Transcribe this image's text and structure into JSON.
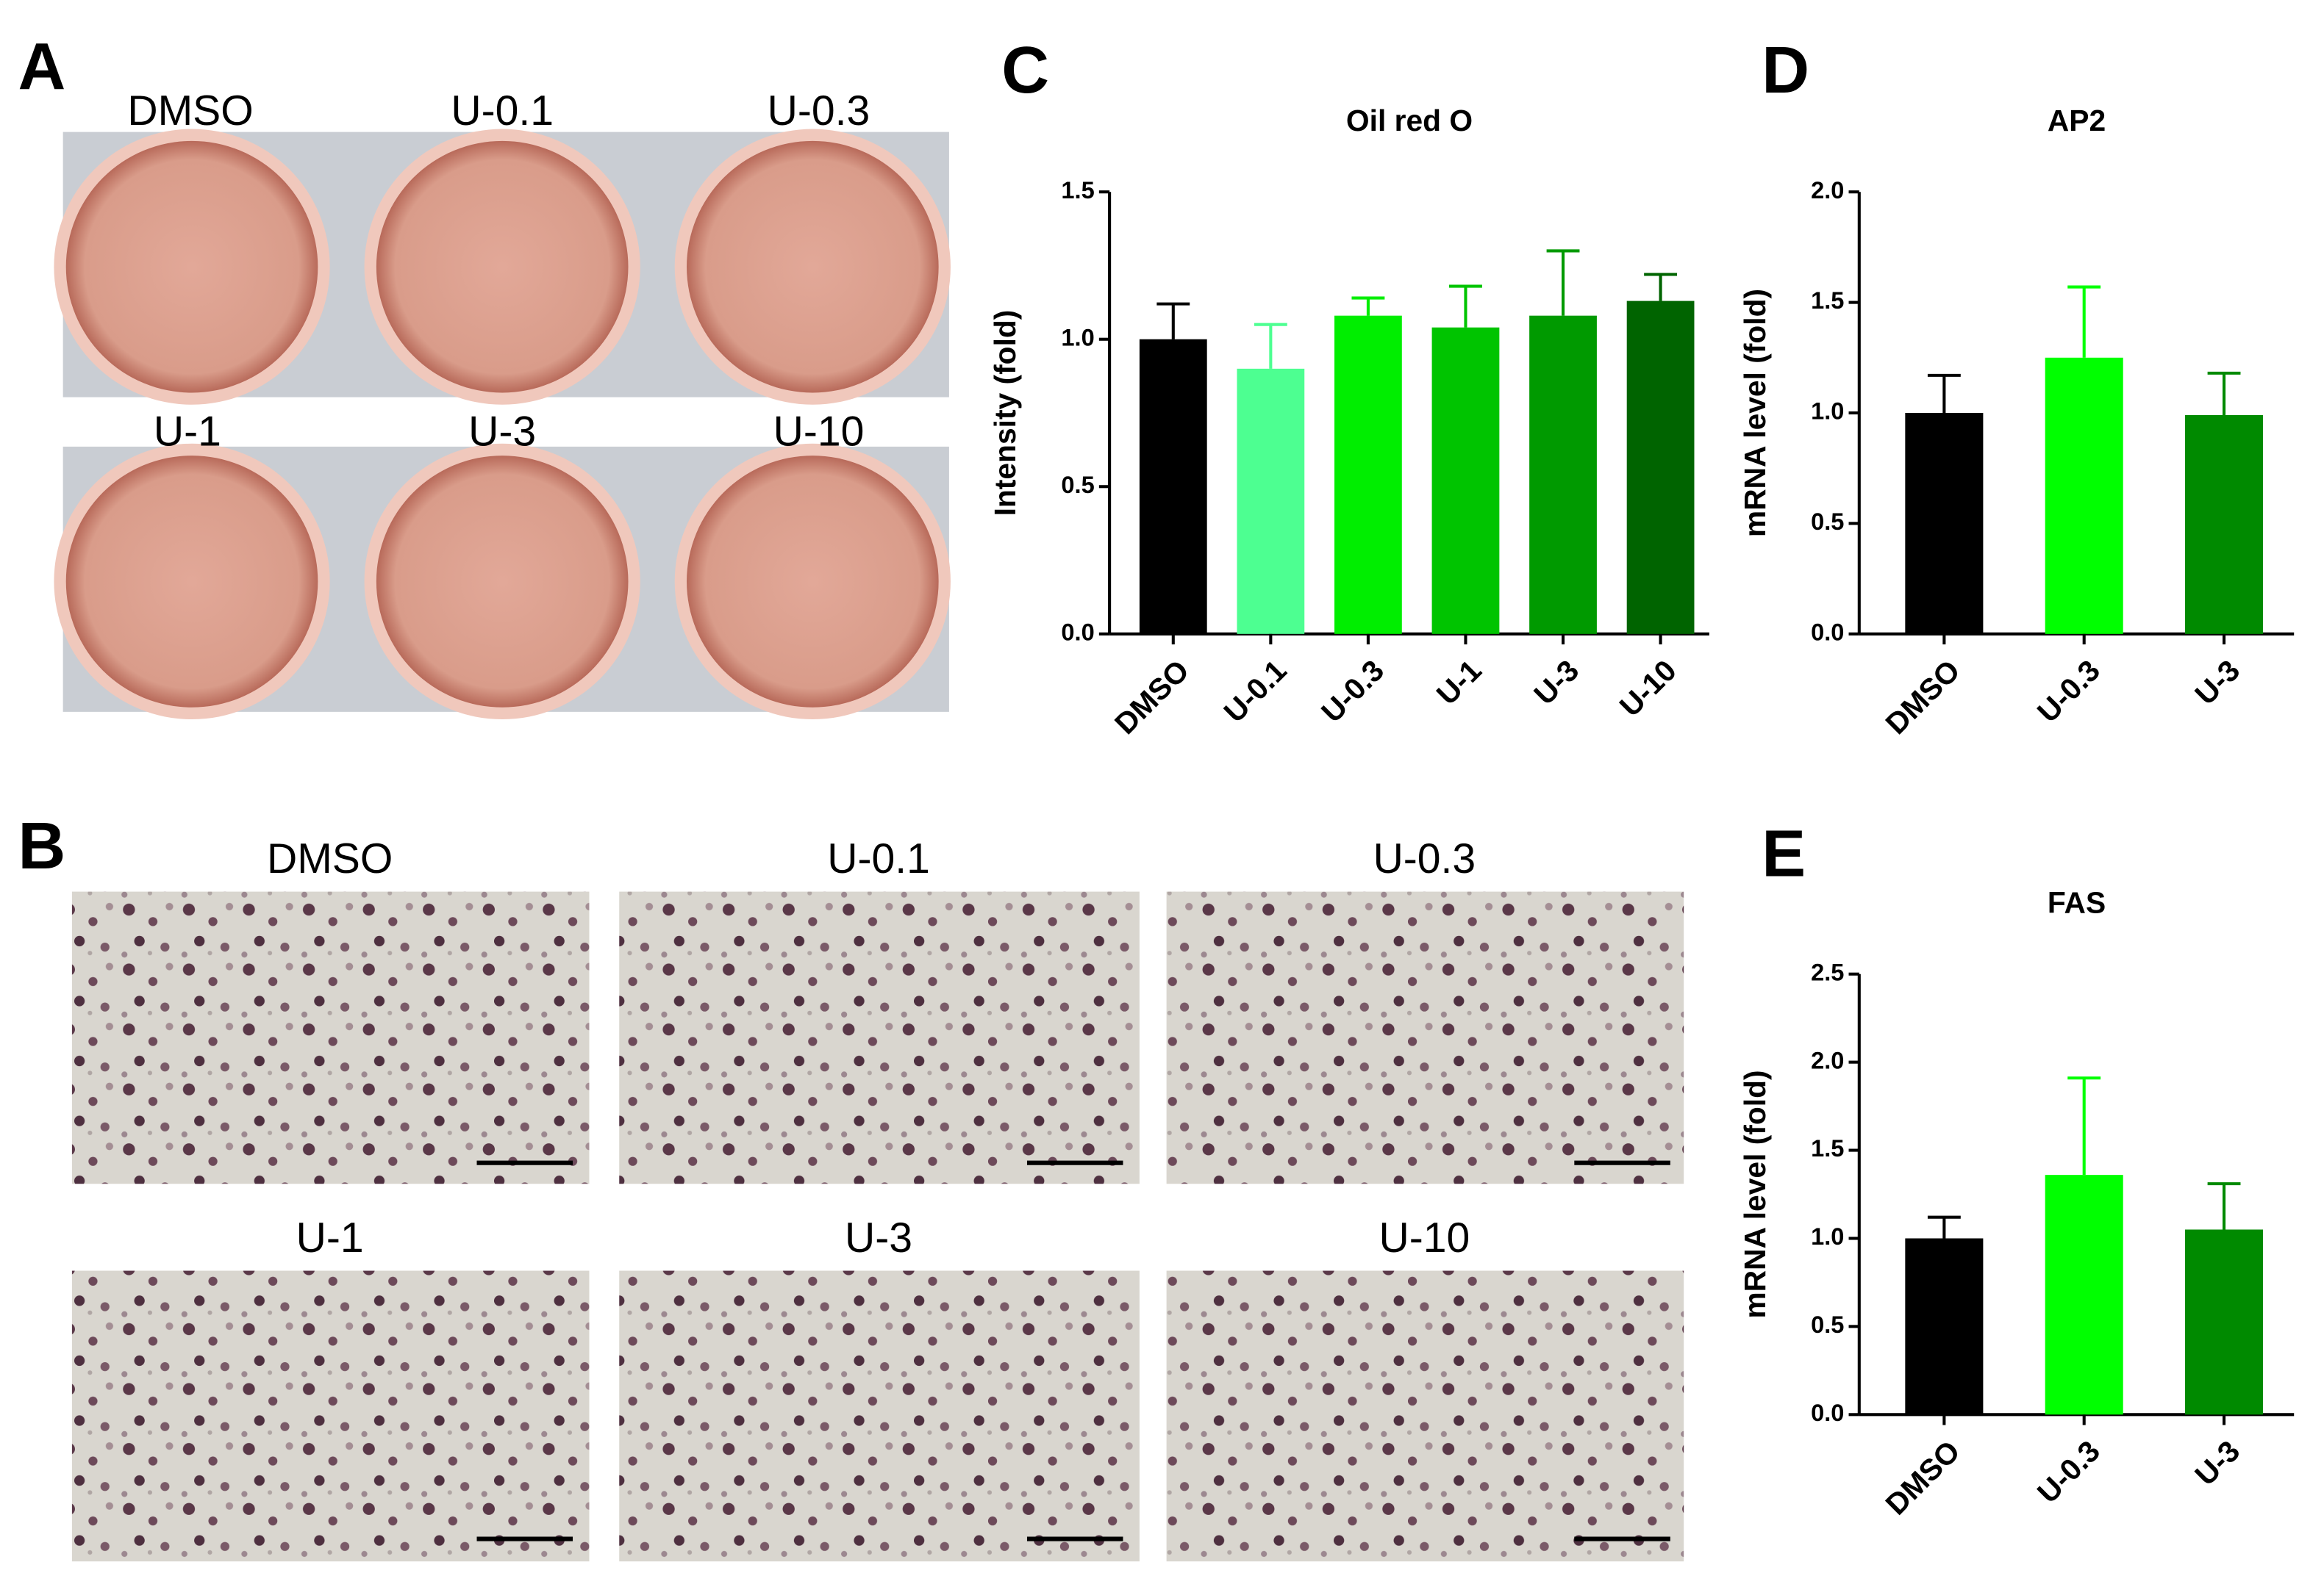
{
  "panel_a": {
    "letter": "A",
    "wells": [
      "DMSO",
      "U-0.1",
      "U-0.3",
      "U-1",
      "U-3",
      "U-10"
    ]
  },
  "panel_b": {
    "letter": "B",
    "images": [
      "DMSO",
      "U-0.1",
      "U-0.3",
      "U-1",
      "U-3",
      "U-10"
    ]
  },
  "chart_data": [
    {
      "type": "bar",
      "letter": "C",
      "title": "Oil red O",
      "y_label": "Intensity (fold)",
      "categories": [
        "DMSO",
        "U-0.1",
        "U-0.3",
        "U-1",
        "U-3",
        "U-10"
      ],
      "values": [
        1.0,
        0.9,
        1.08,
        1.04,
        1.08,
        1.13
      ],
      "errors": [
        0.12,
        0.15,
        0.06,
        0.14,
        0.22,
        0.09
      ],
      "colors": [
        "#000000",
        "#4dff91",
        "#00ee00",
        "#00c400",
        "#009a00",
        "#006400"
      ],
      "ylim": [
        0,
        1.5
      ],
      "yticks": [
        {
          "value": 0,
          "label": "0.0"
        },
        {
          "value": 0.5,
          "label": "0.5"
        },
        {
          "value": 1,
          "label": "1.0"
        },
        {
          "value": 1.5,
          "label": "1.5"
        }
      ]
    },
    {
      "type": "bar",
      "letter": "D",
      "title": "AP2",
      "y_label": "mRNA level (fold)",
      "categories": [
        "DMSO",
        "U-0.3",
        "U-3"
      ],
      "values": [
        1.0,
        1.25,
        0.99
      ],
      "errors": [
        0.17,
        0.32,
        0.19
      ],
      "colors": [
        "#000000",
        "#00ff00",
        "#008a00"
      ],
      "ylim": [
        0,
        2
      ],
      "yticks": [
        {
          "value": 0,
          "label": "0.0"
        },
        {
          "value": 0.5,
          "label": "0.5"
        },
        {
          "value": 1,
          "label": "1.0"
        },
        {
          "value": 1.5,
          "label": "1.5"
        },
        {
          "value": 2,
          "label": "2.0"
        }
      ]
    },
    {
      "type": "bar",
      "letter": "E",
      "title": "FAS",
      "y_label": "mRNA level (fold)",
      "categories": [
        "DMSO",
        "U-0.3",
        "U-3"
      ],
      "values": [
        1.0,
        1.36,
        1.05
      ],
      "errors": [
        0.12,
        0.55,
        0.26
      ],
      "colors": [
        "#000000",
        "#00ff00",
        "#008a00"
      ],
      "ylim": [
        0,
        2.5
      ],
      "yticks": [
        {
          "value": 0,
          "label": "0.0"
        },
        {
          "value": 0.5,
          "label": "0.5"
        },
        {
          "value": 1,
          "label": "1.0"
        },
        {
          "value": 1.5,
          "label": "1.5"
        },
        {
          "value": 2,
          "label": "2.0"
        },
        {
          "value": 2.5,
          "label": "2.5"
        }
      ]
    }
  ]
}
